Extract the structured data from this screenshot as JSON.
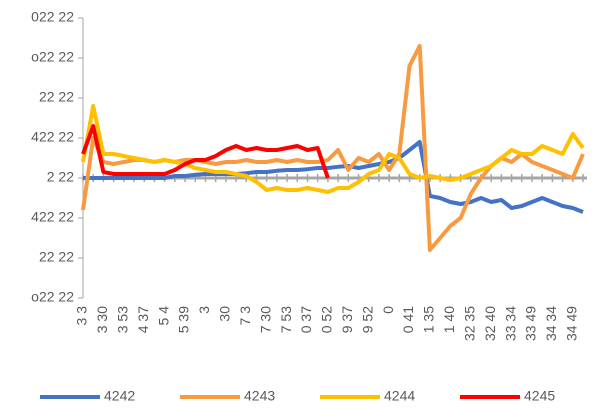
{
  "chart_data": {
    "type": "line",
    "categories": [
      "3 3",
      null,
      "3 30",
      null,
      "3 53",
      null,
      "4 37",
      null,
      "5 4",
      null,
      "5 39",
      null,
      "3",
      null,
      "30",
      null,
      "7 3",
      null,
      "7 30",
      null,
      "7 53",
      null,
      "0 37",
      null,
      "0 52",
      null,
      "9 37",
      null,
      "9 52",
      null,
      "0",
      null,
      "0 41",
      null,
      "1 35",
      null,
      "1 40",
      null,
      "32 35",
      null,
      "32 40",
      null,
      "33 34",
      null,
      "33 49",
      null,
      "34 34",
      null,
      "34 49",
      null
    ],
    "series": [
      {
        "name": "4242",
        "color": "#4472c4",
        "values": [
          0,
          0,
          0,
          0,
          0,
          0,
          0,
          0,
          0,
          5,
          5,
          8,
          10,
          10,
          10,
          10,
          12,
          15,
          15,
          18,
          20,
          20,
          22,
          25,
          25,
          28,
          30,
          25,
          30,
          35,
          40,
          50,
          70,
          90,
          -45,
          -50,
          -60,
          -65,
          -60,
          -50,
          -60,
          -55,
          -75,
          -70,
          -60,
          -50,
          -60,
          -70,
          -75,
          -85
        ]
      },
      {
        "name": "4243",
        "color": "#f79a40",
        "values": [
          -80,
          100,
          40,
          35,
          40,
          45,
          45,
          40,
          45,
          40,
          45,
          45,
          40,
          35,
          40,
          40,
          45,
          40,
          40,
          45,
          40,
          45,
          40,
          40,
          45,
          70,
          20,
          50,
          40,
          60,
          20,
          60,
          280,
          330,
          -180,
          -150,
          -120,
          -100,
          -40,
          0,
          30,
          50,
          40,
          60,
          40,
          30,
          20,
          10,
          0,
          60
        ]
      },
      {
        "name": "4244",
        "color": "#ffc000",
        "values": [
          40,
          180,
          60,
          60,
          55,
          50,
          45,
          40,
          45,
          40,
          35,
          25,
          20,
          15,
          15,
          10,
          5,
          -10,
          -30,
          -25,
          -30,
          -30,
          -25,
          -30,
          -35,
          -25,
          -25,
          -10,
          10,
          20,
          60,
          50,
          10,
          0,
          5,
          0,
          -5,
          0,
          10,
          20,
          30,
          50,
          70,
          60,
          60,
          80,
          70,
          60,
          110,
          75
        ]
      },
      {
        "name": "4245",
        "color": "#ff0000",
        "values": [
          60,
          130,
          15,
          10,
          10,
          10,
          10,
          10,
          10,
          20,
          35,
          45,
          45,
          55,
          70,
          80,
          70,
          75,
          70,
          70,
          75,
          80,
          70,
          75,
          0,
          null,
          null,
          null,
          null,
          null,
          null,
          null,
          null,
          null,
          null,
          null,
          null,
          null,
          null,
          null,
          null,
          null,
          null,
          null,
          null,
          null,
          null,
          null,
          null,
          null
        ]
      }
    ],
    "ylim": [
      -300,
      400
    ],
    "yticks": [
      {
        "value": 400,
        "label": "022 22"
      },
      {
        "value": 300,
        "label": "o22 22"
      },
      {
        "value": 200,
        "label": "22 22"
      },
      {
        "value": 100,
        "label": "422 22"
      },
      {
        "value": 0,
        "label": "2 22"
      },
      {
        "value": -100,
        "label": "422 22"
      },
      {
        "value": -200,
        "label": "22 22"
      },
      {
        "value": -300,
        "label": "o22 22"
      }
    ],
    "legend": "bottom"
  }
}
